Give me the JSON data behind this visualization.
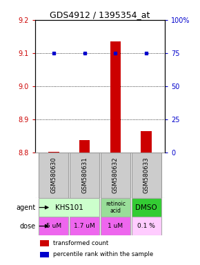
{
  "title": "GDS4912 / 1395354_at",
  "samples": [
    "GSM580630",
    "GSM580631",
    "GSM580632",
    "GSM580633"
  ],
  "bar_values": [
    8.802,
    8.838,
    9.135,
    8.865
  ],
  "percentile_values": [
    75,
    75,
    75,
    75
  ],
  "ylim_left": [
    8.8,
    9.2
  ],
  "ylim_right": [
    0,
    100
  ],
  "yticks_left": [
    8.8,
    8.9,
    9.0,
    9.1,
    9.2
  ],
  "yticks_right": [
    0,
    25,
    50,
    75,
    100
  ],
  "bar_color": "#cc0000",
  "dot_color": "#0000cc",
  "dose_labels": [
    "5 uM",
    "1.7 uM",
    "1 uM",
    "0.1 %"
  ],
  "dose_colors": [
    "#ee66ee",
    "#ee66ee",
    "#ee66ee",
    "#ffccff"
  ],
  "agent_color_khs": "#ccffcc",
  "agent_color_ra": "#99dd99",
  "agent_color_dmso": "#33cc33",
  "sample_box_color": "#cccccc",
  "legend_bar_label": "transformed count",
  "legend_dot_label": "percentile rank within the sample",
  "left_axis_color": "#cc0000",
  "right_axis_color": "#0000cc"
}
